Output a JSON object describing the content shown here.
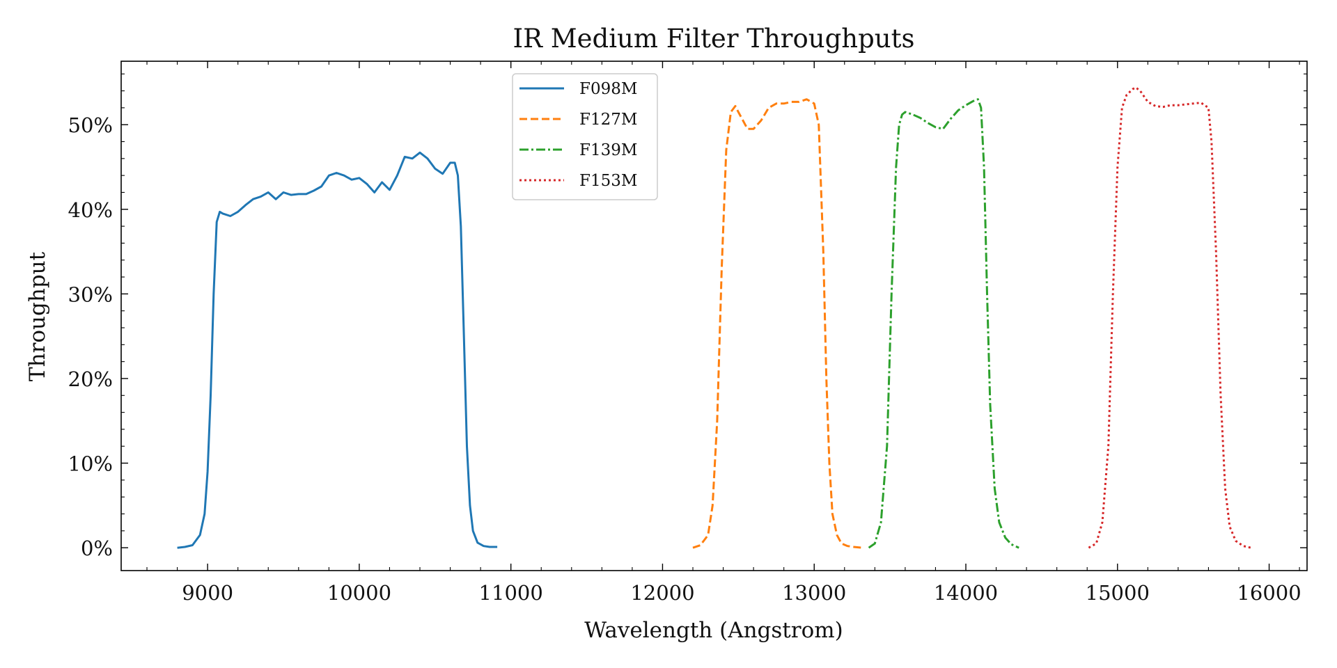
{
  "chart_data": {
    "type": "line",
    "title": "IR Medium Filter Throughputs",
    "xlabel": "Wavelength (Angstrom)",
    "ylabel": "Throughput",
    "xlim": [
      8430,
      16250
    ],
    "ylim": [
      -0.027,
      0.575
    ],
    "xticks": [
      9000,
      10000,
      11000,
      12000,
      13000,
      14000,
      15000,
      16000
    ],
    "xtick_labels": [
      "9000",
      "10000",
      "11000",
      "12000",
      "13000",
      "14000",
      "15000",
      "16000"
    ],
    "yticks": [
      0,
      0.1,
      0.2,
      0.3,
      0.4,
      0.5
    ],
    "ytick_labels": [
      "0%",
      "10%",
      "20%",
      "30%",
      "40%",
      "50%"
    ],
    "grid": false,
    "legend_position": "top-left-center",
    "series": [
      {
        "name": "F098M",
        "color": "#1f77b4",
        "style": "solid",
        "x": [
          8800,
          8850,
          8900,
          8950,
          8980,
          9000,
          9020,
          9040,
          9060,
          9080,
          9100,
          9150,
          9200,
          9250,
          9300,
          9350,
          9400,
          9450,
          9500,
          9550,
          9600,
          9650,
          9700,
          9750,
          9800,
          9850,
          9900,
          9950,
          10000,
          10050,
          10100,
          10150,
          10200,
          10250,
          10300,
          10350,
          10400,
          10450,
          10500,
          10550,
          10600,
          10630,
          10650,
          10670,
          10690,
          10710,
          10730,
          10750,
          10780,
          10820,
          10860,
          10910
        ],
        "y": [
          0.0,
          0.001,
          0.003,
          0.015,
          0.04,
          0.09,
          0.18,
          0.3,
          0.385,
          0.397,
          0.395,
          0.392,
          0.397,
          0.405,
          0.412,
          0.415,
          0.42,
          0.412,
          0.42,
          0.417,
          0.418,
          0.418,
          0.422,
          0.427,
          0.44,
          0.443,
          0.44,
          0.435,
          0.437,
          0.43,
          0.42,
          0.432,
          0.423,
          0.44,
          0.462,
          0.46,
          0.467,
          0.46,
          0.448,
          0.442,
          0.455,
          0.455,
          0.44,
          0.38,
          0.25,
          0.12,
          0.05,
          0.02,
          0.006,
          0.002,
          0.001,
          0.001
        ]
      },
      {
        "name": "F127M",
        "color": "#ff7f0e",
        "style": "dashed",
        "x": [
          12200,
          12250,
          12300,
          12330,
          12360,
          12390,
          12420,
          12450,
          12480,
          12500,
          12530,
          12560,
          12600,
          12650,
          12700,
          12750,
          12800,
          12850,
          12900,
          12950,
          13000,
          13030,
          13060,
          13080,
          13100,
          13120,
          13150,
          13180,
          13220,
          13260,
          13320
        ],
        "y": [
          0.0,
          0.003,
          0.015,
          0.05,
          0.15,
          0.33,
          0.47,
          0.515,
          0.522,
          0.515,
          0.505,
          0.495,
          0.495,
          0.505,
          0.52,
          0.525,
          0.525,
          0.527,
          0.527,
          0.53,
          0.525,
          0.5,
          0.35,
          0.2,
          0.1,
          0.04,
          0.015,
          0.005,
          0.002,
          0.001,
          0.0
        ]
      },
      {
        "name": "F139M",
        "color": "#2ca02c",
        "style": "dashdot",
        "x": [
          13360,
          13400,
          13440,
          13480,
          13510,
          13540,
          13560,
          13580,
          13600,
          13650,
          13700,
          13750,
          13800,
          13850,
          13900,
          13950,
          14000,
          14050,
          14080,
          14100,
          14120,
          14140,
          14160,
          14190,
          14220,
          14260,
          14300,
          14350
        ],
        "y": [
          0.0,
          0.005,
          0.03,
          0.12,
          0.3,
          0.45,
          0.5,
          0.512,
          0.515,
          0.512,
          0.508,
          0.502,
          0.497,
          0.495,
          0.507,
          0.517,
          0.523,
          0.528,
          0.53,
          0.52,
          0.45,
          0.3,
          0.17,
          0.07,
          0.03,
          0.012,
          0.004,
          0.0
        ]
      },
      {
        "name": "F153M",
        "color": "#d62728",
        "style": "dotted",
        "x": [
          14810,
          14860,
          14900,
          14940,
          14970,
          15000,
          15030,
          15060,
          15100,
          15120,
          15150,
          15200,
          15250,
          15300,
          15350,
          15400,
          15450,
          15500,
          15550,
          15600,
          15620,
          15650,
          15680,
          15710,
          15740,
          15780,
          15830,
          15880
        ],
        "y": [
          0.0,
          0.005,
          0.03,
          0.12,
          0.3,
          0.45,
          0.52,
          0.535,
          0.542,
          0.544,
          0.54,
          0.527,
          0.522,
          0.521,
          0.523,
          0.523,
          0.524,
          0.525,
          0.526,
          0.52,
          0.48,
          0.35,
          0.18,
          0.07,
          0.025,
          0.008,
          0.002,
          0.0
        ]
      }
    ]
  }
}
